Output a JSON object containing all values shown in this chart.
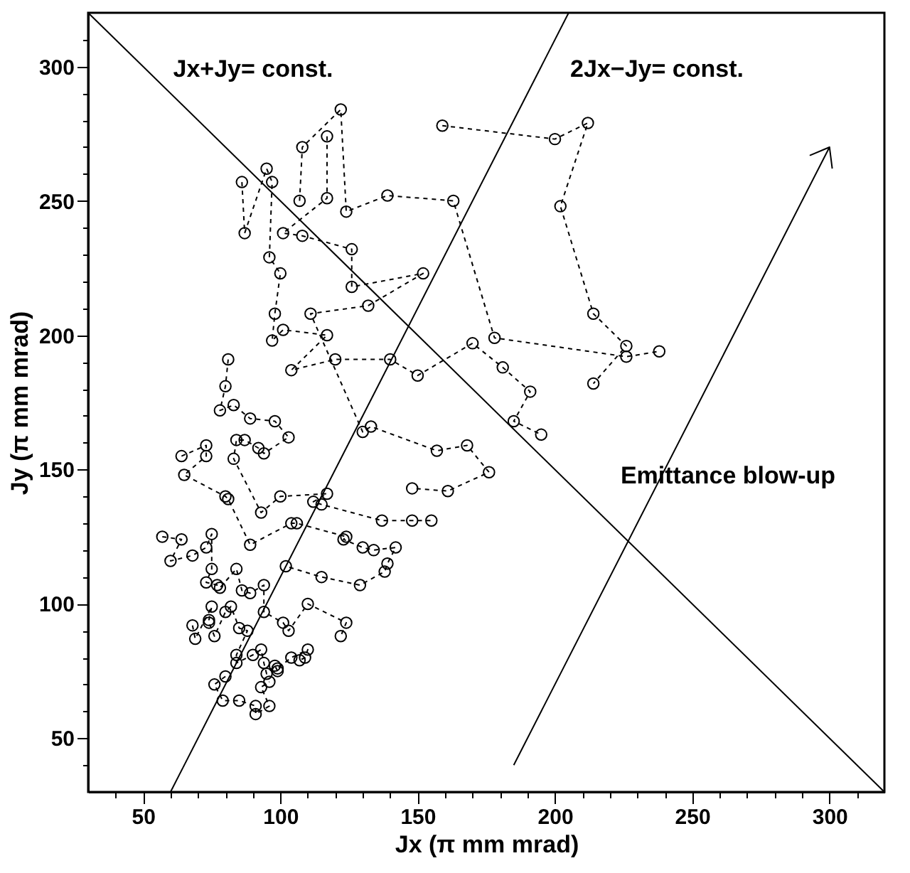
{
  "chart_data": {
    "type": "line",
    "marker": "circle",
    "line_style": "dashed",
    "xlabel": "Jx (π mm mrad)",
    "ylabel": "Jy (π mm mrad)",
    "xlim": [
      30,
      320
    ],
    "ylim": [
      30,
      320
    ],
    "xticks": [
      {
        "value": 40,
        "label": null
      },
      50,
      {
        "value": 60,
        "label": null
      },
      {
        "value": 70,
        "label": null
      },
      {
        "value": 80,
        "label": null
      },
      {
        "value": 90,
        "label": null
      },
      100,
      {
        "value": 110,
        "label": null
      },
      {
        "value": 120,
        "label": null
      },
      {
        "value": 130,
        "label": null
      },
      {
        "value": 140,
        "label": null
      },
      150,
      {
        "value": 160,
        "label": null
      },
      {
        "value": 170,
        "label": null
      },
      {
        "value": 180,
        "label": null
      },
      {
        "value": 190,
        "label": null
      },
      200,
      {
        "value": 210,
        "label": null
      },
      {
        "value": 220,
        "label": null
      },
      {
        "value": 230,
        "label": null
      },
      {
        "value": 240,
        "label": null
      },
      250,
      {
        "value": 260,
        "label": null
      },
      {
        "value": 270,
        "label": null
      },
      {
        "value": 280,
        "label": null
      },
      {
        "value": 290,
        "label": null
      },
      300,
      {
        "value": 310,
        "label": null
      }
    ],
    "yticks": [
      {
        "value": 40,
        "label": null
      },
      50,
      {
        "value": 60,
        "label": null
      },
      {
        "value": 70,
        "label": null
      },
      {
        "value": 80,
        "label": null
      },
      {
        "value": 90,
        "label": null
      },
      100,
      {
        "value": 110,
        "label": null
      },
      {
        "value": 120,
        "label": null
      },
      {
        "value": 130,
        "label": null
      },
      {
        "value": 140,
        "label": null
      },
      150,
      {
        "value": 160,
        "label": null
      },
      {
        "value": 170,
        "label": null
      },
      {
        "value": 180,
        "label": null
      },
      {
        "value": 190,
        "label": null
      },
      200,
      {
        "value": 210,
        "label": null
      },
      {
        "value": 220,
        "label": null
      },
      {
        "value": 230,
        "label": null
      },
      {
        "value": 240,
        "label": null
      },
      250,
      {
        "value": 260,
        "label": null
      },
      {
        "value": 270,
        "label": null
      },
      {
        "value": 280,
        "label": null
      },
      {
        "value": 290,
        "label": null
      },
      300,
      {
        "value": 310,
        "label": null
      }
    ],
    "annotations": [
      "Emittance blow-up"
    ],
    "series": [
      {
        "color": "#000000",
        "x": [
          159,
          200,
          212,
          202,
          214,
          226,
          214
        ],
        "values": [
          278,
          273,
          279,
          248,
          208,
          196,
          182
        ]
      },
      {
        "color": "#000000",
        "x": [
          107,
          108,
          122,
          124,
          139,
          163,
          178,
          226,
          238
        ],
        "values": [
          250,
          270,
          284,
          246,
          252,
          250,
          199,
          192,
          194
        ]
      },
      {
        "color": "#000000",
        "x": [
          86,
          87,
          95,
          97,
          96,
          100,
          98,
          97,
          101,
          117,
          104,
          120,
          140,
          150,
          170,
          181,
          191,
          185,
          195
        ],
        "values": [
          257,
          238,
          262,
          257,
          229,
          223,
          208,
          198,
          202,
          200,
          187,
          191,
          191,
          185,
          197,
          188,
          179,
          168,
          163
        ]
      },
      {
        "color": "#000000",
        "x": [
          117,
          117,
          101,
          108,
          126,
          126,
          152,
          132,
          111,
          130,
          133,
          157,
          168,
          176,
          161,
          148
        ],
        "values": [
          274,
          251,
          238,
          237,
          232,
          218,
          223,
          211,
          208,
          164,
          166,
          157,
          159,
          149,
          142,
          143
        ]
      },
      {
        "color": "#000000",
        "x": [
          81,
          80,
          78,
          83,
          89,
          98,
          103,
          94,
          92,
          87,
          84,
          83,
          93,
          100,
          117,
          112,
          115,
          137,
          148,
          155
        ],
        "values": [
          191,
          181,
          172,
          174,
          169,
          168,
          162,
          156,
          158,
          161,
          161,
          154,
          134,
          140,
          141,
          138,
          137,
          131,
          131,
          131
        ]
      },
      {
        "color": "#000000",
        "x": [
          64,
          73,
          73,
          65,
          80,
          81,
          89,
          104,
          106,
          124,
          123,
          130,
          134,
          142,
          139,
          138,
          129,
          115,
          102
        ],
        "values": [
          155,
          159,
          155,
          148,
          140,
          139,
          122,
          130,
          130,
          125,
          124,
          121,
          120,
          121,
          115,
          112,
          107,
          110,
          114
        ]
      },
      {
        "color": "#000000",
        "x": [
          57,
          64,
          60,
          68,
          73,
          75,
          75,
          73,
          77,
          78,
          84,
          86,
          89,
          94,
          94,
          101,
          103,
          110,
          124,
          122
        ],
        "values": [
          125,
          124,
          116,
          118,
          121,
          126,
          113,
          108,
          107,
          106,
          113,
          105,
          104,
          107,
          97,
          93,
          90,
          100,
          93,
          88
        ]
      },
      {
        "color": "#000000",
        "x": [
          68,
          69,
          75,
          74,
          74,
          76,
          80,
          82,
          85,
          88,
          84,
          84,
          90,
          93,
          94,
          95,
          98,
          99,
          99,
          104,
          110,
          109,
          107
        ],
        "values": [
          92,
          87,
          99,
          94,
          93,
          88,
          97,
          99,
          91,
          90,
          81,
          78,
          81,
          83,
          78,
          74,
          77,
          75,
          76,
          80,
          83,
          80,
          79
        ]
      },
      {
        "color": "#000000",
        "x": [
          80,
          76,
          79,
          85,
          91,
          91,
          96,
          93,
          96
        ],
        "values": [
          73,
          70,
          64,
          64,
          62,
          59,
          62,
          69,
          71
        ]
      },
      {
        "name": "Jx+Jy= const.",
        "type": "line",
        "marker": "none",
        "line_style": "solid",
        "color": "#000000",
        "x": [
          30,
          320
        ],
        "values": [
          320,
          30
        ]
      },
      {
        "name": "2Jx−Jy= const.",
        "type": "line",
        "marker": "none",
        "line_style": "solid",
        "color": "#000000",
        "x": [
          60,
          205
        ],
        "values": [
          30,
          320
        ]
      },
      {
        "type": "line",
        "marker": "none",
        "line_style": "solid",
        "color": "#000000",
        "x": [
          185,
          300,
          293,
          300,
          301
        ],
        "values": [
          40,
          270,
          267,
          270,
          262
        ]
      }
    ]
  }
}
